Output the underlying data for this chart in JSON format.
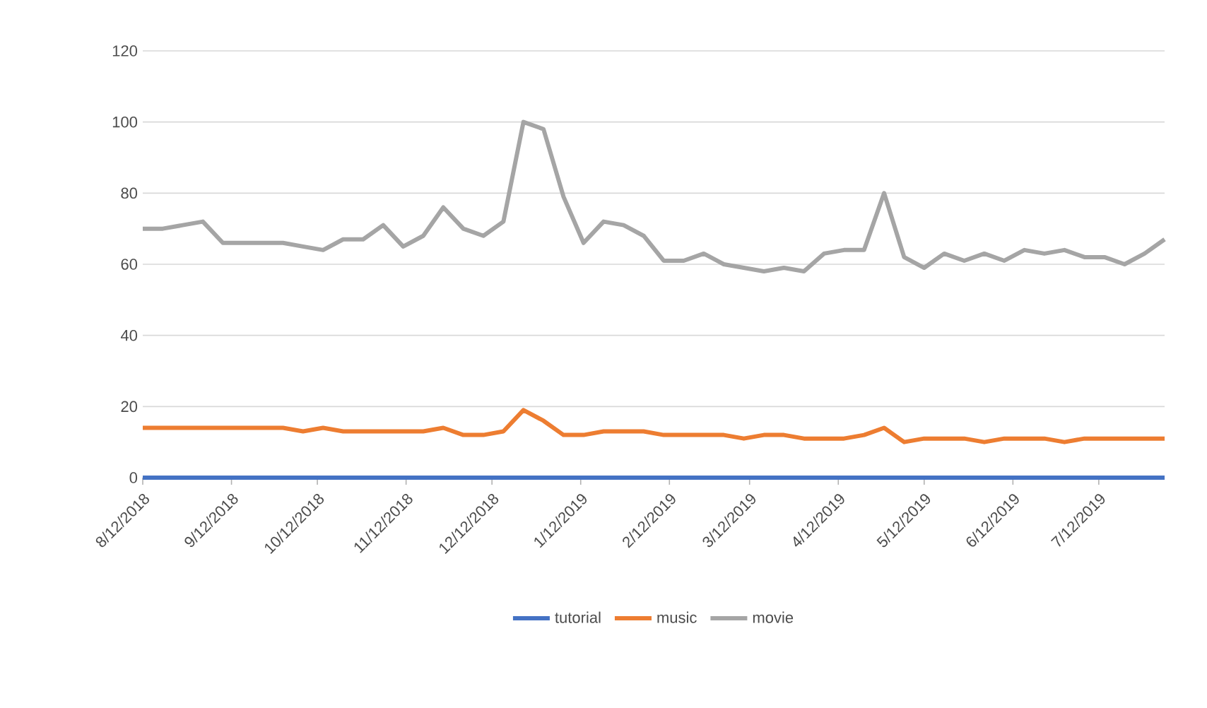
{
  "chart_data": {
    "type": "line",
    "x": [
      "2018-08-12",
      "2018-08-19",
      "2018-08-26",
      "2018-09-02",
      "2018-09-09",
      "2018-09-16",
      "2018-09-23",
      "2018-09-30",
      "2018-10-07",
      "2018-10-14",
      "2018-10-21",
      "2018-10-28",
      "2018-11-04",
      "2018-11-11",
      "2018-11-18",
      "2018-11-25",
      "2018-12-02",
      "2018-12-09",
      "2018-12-16",
      "2018-12-23",
      "2018-12-30",
      "2019-01-06",
      "2019-01-13",
      "2019-01-20",
      "2019-01-27",
      "2019-02-03",
      "2019-02-10",
      "2019-02-17",
      "2019-02-24",
      "2019-03-03",
      "2019-03-10",
      "2019-03-17",
      "2019-03-24",
      "2019-03-31",
      "2019-04-07",
      "2019-04-14",
      "2019-04-21",
      "2019-04-28",
      "2019-05-05",
      "2019-05-12",
      "2019-05-19",
      "2019-05-26",
      "2019-06-02",
      "2019-06-09",
      "2019-06-16",
      "2019-06-23",
      "2019-06-30",
      "2019-07-07",
      "2019-07-14",
      "2019-07-21",
      "2019-07-28",
      "2019-08-04"
    ],
    "series": [
      {
        "name": "tutorial",
        "color": "#4472c4",
        "values": [
          0,
          0,
          0,
          0,
          0,
          0,
          0,
          0,
          0,
          0,
          0,
          0,
          0,
          0,
          0,
          0,
          0,
          0,
          0,
          0,
          0,
          0,
          0,
          0,
          0,
          0,
          0,
          0,
          0,
          0,
          0,
          0,
          0,
          0,
          0,
          0,
          0,
          0,
          0,
          0,
          0,
          0,
          0,
          0,
          0,
          0,
          0,
          0,
          0,
          0,
          0,
          0
        ]
      },
      {
        "name": "music",
        "color": "#ed7d31",
        "values": [
          14,
          14,
          14,
          14,
          14,
          14,
          14,
          14,
          13,
          14,
          13,
          13,
          13,
          13,
          13,
          14,
          12,
          12,
          13,
          19,
          16,
          12,
          12,
          13,
          13,
          13,
          12,
          12,
          12,
          12,
          11,
          12,
          12,
          11,
          11,
          11,
          12,
          14,
          10,
          11,
          11,
          11,
          10,
          11,
          11,
          11,
          10,
          11,
          11,
          11,
          11,
          11
        ]
      },
      {
        "name": "movie",
        "color": "#a5a5a5",
        "values": [
          70,
          70,
          71,
          72,
          66,
          66,
          66,
          66,
          65,
          64,
          67,
          67,
          71,
          65,
          68,
          76,
          70,
          68,
          72,
          100,
          98,
          79,
          66,
          72,
          71,
          68,
          61,
          61,
          63,
          60,
          59,
          58,
          59,
          58,
          63,
          64,
          64,
          80,
          62,
          59,
          63,
          61,
          63,
          61,
          64,
          63,
          64,
          62,
          62,
          60,
          63,
          67
        ]
      }
    ],
    "xlim": [
      "2018-08-12",
      "2019-08-04"
    ],
    "xticks": [
      {
        "value": "2018-08-12",
        "label": "8/12/2018"
      },
      {
        "value": "2018-09-12",
        "label": "9/12/2018"
      },
      {
        "value": "2018-10-12",
        "label": "10/12/2018"
      },
      {
        "value": "2018-11-12",
        "label": "11/12/2018"
      },
      {
        "value": "2018-12-12",
        "label": "12/12/2018"
      },
      {
        "value": "2019-01-12",
        "label": "1/12/2019"
      },
      {
        "value": "2019-02-12",
        "label": "2/12/2019"
      },
      {
        "value": "2019-03-12",
        "label": "3/12/2019"
      },
      {
        "value": "2019-04-12",
        "label": "4/12/2019"
      },
      {
        "value": "2019-05-12",
        "label": "5/12/2019"
      },
      {
        "value": "2019-06-12",
        "label": "6/12/2019"
      },
      {
        "value": "2019-07-12",
        "label": "7/12/2019"
      }
    ],
    "ylim": [
      0,
      120
    ],
    "yticks": [
      0,
      20,
      40,
      60,
      80,
      100,
      120
    ],
    "grid": "y",
    "legend": "bottom",
    "marker": "none",
    "line_style": "solid"
  }
}
